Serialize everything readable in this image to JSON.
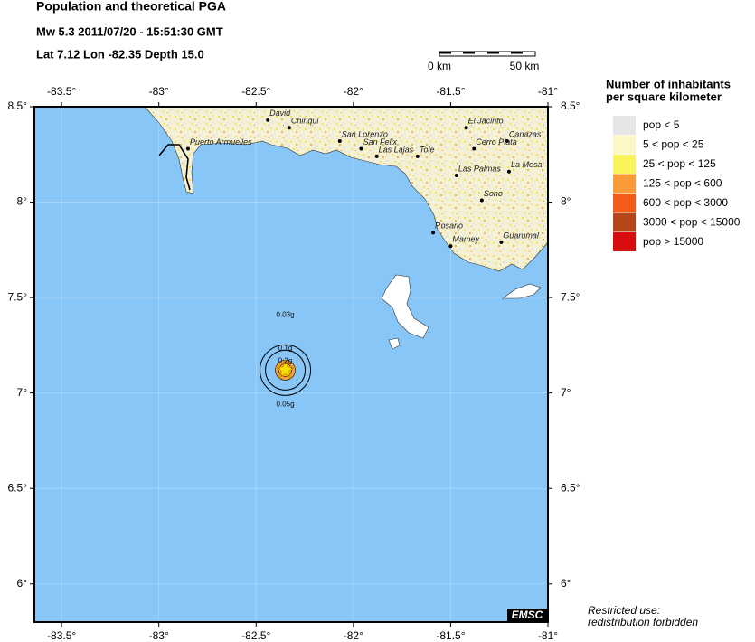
{
  "header": {
    "title": "Population and theoretical PGA",
    "event": "Mw 5.3  2011/07/20 - 15:51:30 GMT",
    "location": "Lat  7.12    Lon -82.35    Depth  15.0"
  },
  "scale_bar": {
    "start": "0 km",
    "end": "50 km"
  },
  "map": {
    "lon_range": [
      -83.64,
      -81.0
    ],
    "lat_range": [
      5.8,
      8.5
    ],
    "lon_ticks": [
      {
        "value": -83.5,
        "label": "-83.5°"
      },
      {
        "value": -83,
        "label": "-83°"
      },
      {
        "value": -82.5,
        "label": "-82.5°"
      },
      {
        "value": -82,
        "label": "-82°"
      },
      {
        "value": -81.5,
        "label": "-81.5°"
      },
      {
        "value": -81,
        "label": "-81°"
      }
    ],
    "lat_ticks": [
      {
        "value": 8.5,
        "label": "8.5°"
      },
      {
        "value": 8,
        "label": "8°"
      },
      {
        "value": 7.5,
        "label": "7.5°"
      },
      {
        "value": 7,
        "label": "7°"
      },
      {
        "value": 6.5,
        "label": "6.5°"
      },
      {
        "value": 6,
        "label": "6°"
      }
    ],
    "epicenter": {
      "lon": -82.35,
      "lat": 7.12
    },
    "cities": [
      {
        "name": "Puerto Armuelles",
        "lon": -82.85,
        "lat": 8.28
      },
      {
        "name": "David",
        "lon": -82.44,
        "lat": 8.43
      },
      {
        "name": "Chiriqui",
        "lon": -82.33,
        "lat": 8.39
      },
      {
        "name": "San Lorenzo",
        "lon": -82.07,
        "lat": 8.32
      },
      {
        "name": "San Felix",
        "lon": -81.96,
        "lat": 8.28
      },
      {
        "name": "Las Lajas",
        "lon": -81.88,
        "lat": 8.24
      },
      {
        "name": "Tole",
        "lon": -81.67,
        "lat": 8.24
      },
      {
        "name": "El Jacinto",
        "lon": -81.42,
        "lat": 8.39
      },
      {
        "name": "Canazas",
        "lon": -81.21,
        "lat": 8.32
      },
      {
        "name": "Cerro Plata",
        "lon": -81.38,
        "lat": 8.28
      },
      {
        "name": "La Mesa",
        "lon": -81.2,
        "lat": 8.16
      },
      {
        "name": "Las Palmas",
        "lon": -81.47,
        "lat": 8.14
      },
      {
        "name": "Sono",
        "lon": -81.34,
        "lat": 8.01
      },
      {
        "name": "Rosario",
        "lon": -81.59,
        "lat": 7.84
      },
      {
        "name": "Mamey",
        "lon": -81.5,
        "lat": 7.77
      },
      {
        "name": "Guarumal",
        "lon": -81.24,
        "lat": 7.79
      }
    ],
    "pga_labels": [
      "0.03g",
      "0.1g",
      "0.2g",
      "0.05g"
    ],
    "logo": "EMSC"
  },
  "legend": {
    "title": [
      "Number of inhabitants",
      "per square kilometer"
    ],
    "items": [
      {
        "label": "pop < 5",
        "color": "#e6e6e6"
      },
      {
        "label": "5 < pop < 25",
        "color": "#fbf8c6"
      },
      {
        "label": "25 < pop < 125",
        "color": "#f8f45a"
      },
      {
        "label": "125 < pop < 600",
        "color": "#fb9a38"
      },
      {
        "label": "600 < pop < 3000",
        "color": "#f45a1a"
      },
      {
        "label": "3000 < pop < 15000",
        "color": "#b5461a"
      },
      {
        "label": "pop > 15000",
        "color": "#d80e0e"
      }
    ]
  },
  "footer": [
    "Restricted use:",
    "redistribution forbidden"
  ]
}
